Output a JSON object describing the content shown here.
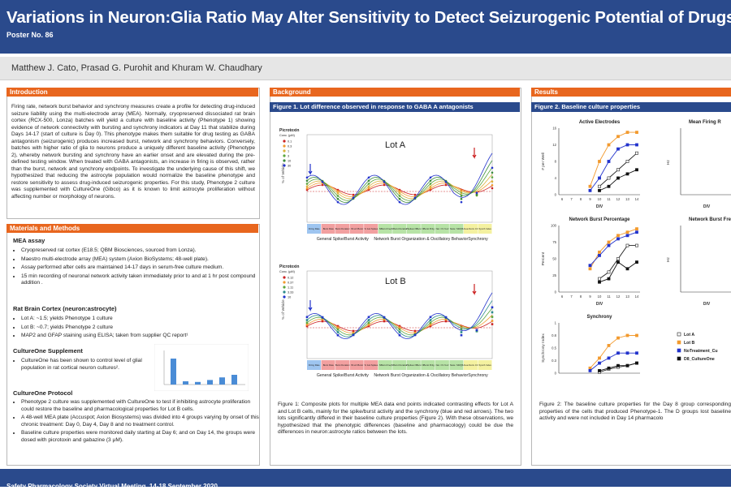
{
  "header": {
    "title": "Variations in Neuron:Glia Ratio May Alter Sensitivity to Detect Seizurogenic Potential of Drugs",
    "poster_no": "Poster No. 86",
    "authors": "Matthew J. Cato, Prasad G. Purohit and Khuram W. Chaudhary"
  },
  "intro": {
    "heading": "Introduction",
    "text": "Firing rate, network burst behavior and synchrony measures create a profile for detecting drug-induced seizure liability using the multi-electrode array (MEA). Normally, cryopreserved dissociated rat brain cortex (RCX-500, Lonza) batches will yield a culture with baseline activity (Phenotype 1) showing evidence of network connectivity with bursting and synchrony indicators at Day 11 that stabilize during Days 14-17 (start of culture is Day 0). This phenotype makes them suitable for drug testing as GABA antagonism (seizurogenic) produces increased burst, network and synchrony behaviors. Conversely, batches with higher ratio of glia to neurons produce a uniquely different baseline activity (Phenotype 2), whereby network bursting and synchrony have an earlier onset and are elevated during the pre-defined testing window. When treated with GABA antagonists, an increase in firing is observed, rather than the burst, network and synchrony endpoints. To investigate the underlying cause of this shift, we hypothesized that reducing the astrocyte population would normalize the baseline phenotype and restore sensitivity to assess drug-induced seizurogenic properties. For this study, Phenotype 2 culture was supplemented with CultureOne (Gibco) as it is known to limit astrocyte proliferation without affecting number or morphology of neurons."
  },
  "methods": {
    "heading": "Materials and Methods",
    "mea_heading": "MEA assay",
    "mea_items": [
      "Cryopreserved rat cortex (E18.5; QBM Biosciences, sourced from Lonza).",
      "Maestro multi-electrode array (MEA) system (Axion BioSystems; 48-well plate).",
      "Assay performed after cells are maintained 14-17 days in serum-free culture medium.",
      "15 min recording of neuronal network activity taken immediately prior to and at 1 hr post compound addition ."
    ],
    "ratio_heading": "Rat Brain Cortex (neuron:astrocyte)",
    "ratio_items": [
      "Lot A: ~1.5; yields Phenotype 1 culture",
      "Lot B: ~0.7; yields Phenotype 2 culture",
      "MAP2 and GFAP staining using ELISA; taken from supplier QC report¹"
    ],
    "supp_heading": "CultureOne Supplement",
    "supp_text": "CultureOne has been shown to control level of glial population in rat cortical neuron cultures².",
    "proto_heading": "CultureOne Protocol",
    "proto_items": [
      "Phenotype 2 culture was supplemented with CultureOne to test if inhibiting astrocyte proliferation could restore the baseline and pharmacological properties for Lot B cells.",
      "A 48-well MEA plate (Accuspot; Axion Biosystems) was divided into 4 groups varying by onset of this chronic treatment: Day 0, Day 4, Day 8 and no treatment control.",
      "Baseline culture properties were monitored daily starting at Day 6; and on Day 14, the groups were dosed with picrotoxin and gabazine (3 μM)."
    ],
    "mini_chart": {
      "values": [
        80,
        10,
        8,
        14,
        22,
        30
      ]
    }
  },
  "background": {
    "heading": "Background",
    "fig_title": "Figure 1. Lot difference observed in response to GABA A antagonists",
    "lotA": "Lot A",
    "lotB": "Lot B",
    "legend_title": "Picrotoxin",
    "legend_sub": "Conc. (μM)",
    "legendA": [
      "0.1",
      "0.3",
      "1",
      "3",
      "10",
      "30"
    ],
    "legendB": [
      "0.12",
      "0.37",
      "1.11",
      "3.33",
      "10"
    ],
    "ylabel": "% of Vehicle",
    "cat_labels": [
      "Firing Rate",
      "Burst Rate",
      "Burst Duration",
      "ISI w/i Burst",
      "% Isol Spikes",
      "NBurst Freq",
      "NBurst Duration",
      "#Spikes NBurst",
      "NBurst Prdg",
      "Net. CV Corr",
      "Netw. SD/Q5",
      "Area Norm.CC",
      "Synch Index"
    ],
    "groups": [
      "General Spike/Burst Activity",
      "Network Burst Organization & Oscillatory Behavior",
      "Synchrony"
    ],
    "caption": "Figure 1: Composite plots for multiple MEA data end points indicated contrasting effects for Lot A and Lot B cells, mainly for the spike/burst activity and the synchrony (blue and red arrows). The two lots significantly differed in their baseline culture properties (Figure 2). With these observations, we hypothesized that the phenotypic differences (baseline and pharmacology) could be due the differences in neuron:astrocyte ratios between the lots."
  },
  "results": {
    "heading": "Results",
    "fig_title": "Figure 2. Baseline culture properties",
    "chart_titles": [
      "Active Electrodes",
      "Mean Firing R",
      "Network Burst Percentage",
      "Network Burst Fre",
      "Synchrony"
    ],
    "ylabels": [
      "# per Well",
      "Hz",
      "Percent",
      "Hz",
      "Synchrony Index"
    ],
    "xlabel": "DIV",
    "legend": [
      "Lot A",
      "Lot B",
      "NoTreatment_Cu",
      "D8_CultureOne"
    ],
    "caption": "Figure 2: The baseline culture properties for the Day 8 group corresponding properties of the cells that produced Phenotype-1. The D groups lost baseline activity and were not included in Day 14 pharmacolo"
  },
  "chart_data": [
    {
      "type": "line",
      "title": "Active Electrodes",
      "xlabel": "DIV",
      "ylabel": "# per Well",
      "x": [
        6,
        7,
        8,
        9,
        10,
        11,
        12,
        13,
        14
      ],
      "ylim": [
        0,
        16
      ],
      "series": [
        {
          "name": "Lot A",
          "values": [
            null,
            null,
            null,
            null,
            2,
            4,
            6,
            8,
            10
          ]
        },
        {
          "name": "Lot B",
          "values": [
            null,
            null,
            null,
            2,
            8,
            12,
            14,
            15,
            15
          ]
        },
        {
          "name": "NoTreatment_Cu",
          "values": [
            null,
            null,
            null,
            1,
            4,
            8,
            11,
            12,
            12
          ]
        },
        {
          "name": "D8_CultureOne",
          "values": [
            null,
            null,
            null,
            null,
            1,
            2,
            4,
            5,
            6
          ]
        }
      ]
    },
    {
      "type": "line",
      "title": "Network Burst Percentage",
      "xlabel": "DIV",
      "ylabel": "Percent",
      "x": [
        6,
        7,
        8,
        9,
        10,
        11,
        12,
        13,
        14
      ],
      "ylim": [
        0,
        100
      ],
      "series": [
        {
          "name": "Lot A",
          "values": [
            null,
            null,
            null,
            null,
            20,
            30,
            50,
            70,
            70
          ]
        },
        {
          "name": "Lot B",
          "values": [
            null,
            null,
            null,
            35,
            60,
            75,
            85,
            90,
            95
          ]
        },
        {
          "name": "NoTreatment_Cu",
          "values": [
            null,
            null,
            null,
            40,
            55,
            70,
            80,
            85,
            90
          ]
        },
        {
          "name": "D8_CultureOne",
          "values": [
            null,
            null,
            null,
            null,
            15,
            20,
            45,
            35,
            45
          ]
        }
      ]
    },
    {
      "type": "line",
      "title": "Synchrony",
      "xlabel": "DIV",
      "ylabel": "Synchrony Index",
      "x": [
        6,
        7,
        8,
        9,
        10,
        11,
        12,
        13,
        14
      ],
      "ylim": [
        0,
        1.0
      ],
      "series": [
        {
          "name": "Lot A",
          "values": [
            null,
            null,
            null,
            null,
            0.02,
            0.08,
            0.12,
            0.15,
            0.2
          ]
        },
        {
          "name": "Lot B",
          "values": [
            null,
            null,
            null,
            0.1,
            0.3,
            0.55,
            0.7,
            0.75,
            0.75
          ]
        },
        {
          "name": "NoTreatment_Cu",
          "values": [
            null,
            null,
            null,
            0.05,
            0.2,
            0.3,
            0.4,
            0.4,
            0.4
          ]
        },
        {
          "name": "D8_CultureOne",
          "values": [
            null,
            null,
            null,
            null,
            0.05,
            0.1,
            0.15,
            0.15,
            0.2
          ]
        }
      ]
    }
  ],
  "colors": {
    "lotA": "#222222",
    "lotB": "#f29a2e",
    "noTreat": "#2233cc",
    "d8": "#111111",
    "header": "#2a4a8c",
    "section": "#e8661e"
  },
  "footer": {
    "text": "Safety Pharmacology Society Virtual Meeting, 14-18 September 2020"
  }
}
